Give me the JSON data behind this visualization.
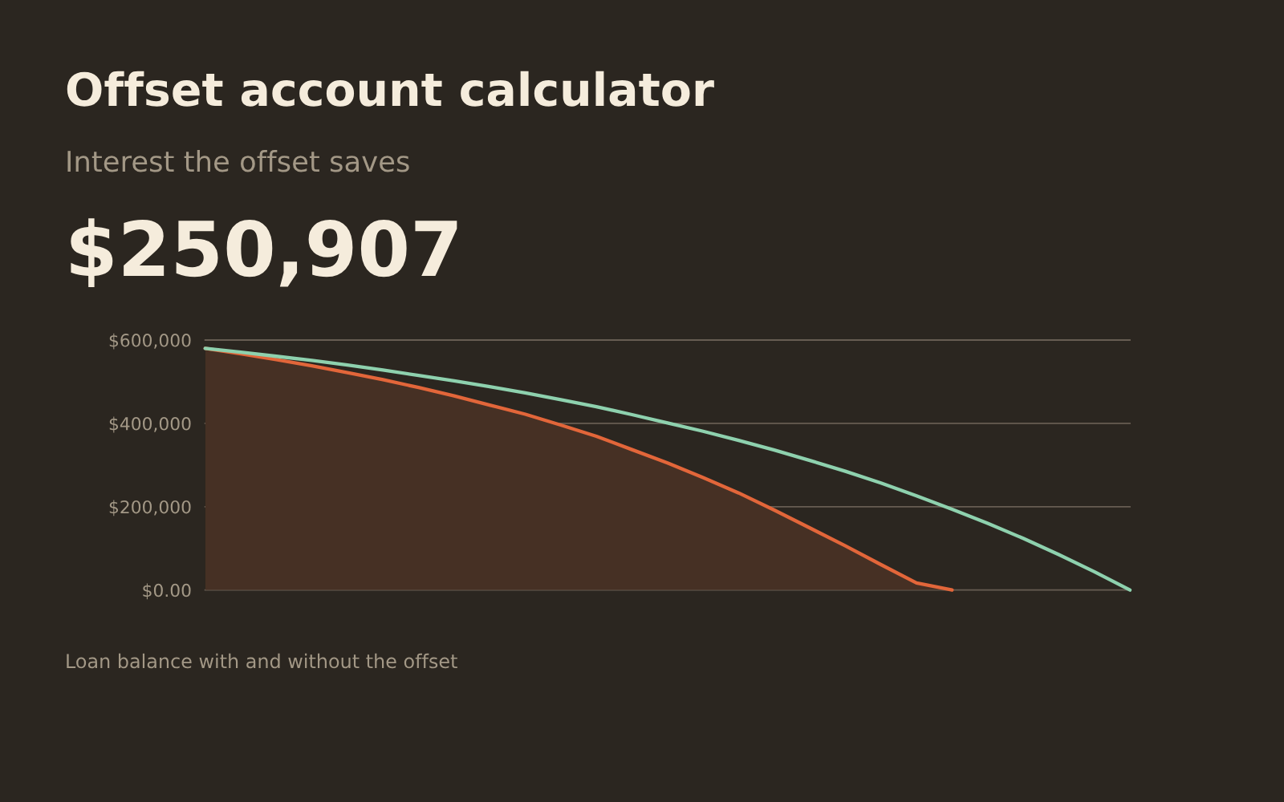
{
  "chart_data": {
    "type": "line",
    "title": "Offset account calculator",
    "subtitle": "Interest the offset saves",
    "annotations": [
      "$250,907",
      "Loan balance with and without the offset"
    ],
    "categories": [
      null,
      null,
      null,
      null,
      null,
      null,
      null,
      null,
      null,
      null,
      null,
      null,
      null,
      null,
      null,
      null,
      null,
      null,
      null,
      null,
      null,
      null,
      null,
      null,
      null,
      null,
      null
    ],
    "series": [
      {
        "type": "area",
        "color": "#e2663a",
        "values": [
          580000,
          567000,
          553000,
          538000,
          522000,
          505000,
          486000,
          466000,
          444000,
          422000,
          396000,
          369000,
          337000,
          305000,
          270000,
          233000,
          192000,
          149000,
          106000,
          61000,
          17000,
          0,
          null,
          null,
          null,
          null,
          null
        ]
      },
      {
        "color": "#8ed1ae",
        "values": [
          580000,
          571000,
          561000,
          551000,
          540000,
          528000,
          515000,
          502000,
          488000,
          473000,
          457000,
          440000,
          421000,
          401000,
          381000,
          359000,
          336000,
          311000,
          285000,
          257000,
          226000,
          194000,
          160000,
          124000,
          85000,
          44000,
          0
        ]
      }
    ],
    "ylim": [
      0,
      600000
    ],
    "yticks": [
      {
        "value": 0,
        "label": "$0.00"
      },
      {
        "value": 200000,
        "label": "$200,000"
      },
      {
        "value": 400000,
        "label": "$400,000"
      },
      {
        "value": 600000,
        "label": "$600,000"
      }
    ],
    "grid": "y",
    "tick_labels": "y"
  }
}
